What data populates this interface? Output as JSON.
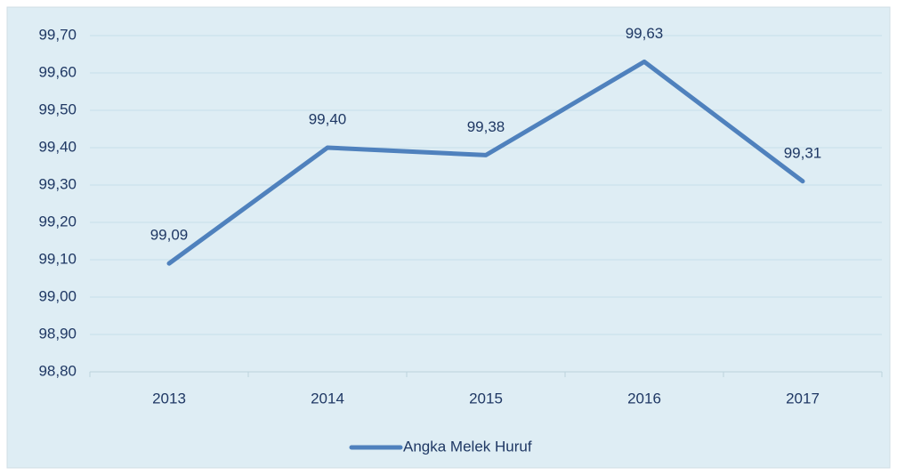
{
  "chart_data": {
    "type": "line",
    "categories": [
      "2013",
      "2014",
      "2015",
      "2016",
      "2017"
    ],
    "series": [
      {
        "name": "Angka Melek Huruf",
        "color": "#4f81bd",
        "values": [
          99.09,
          99.4,
          99.38,
          99.63,
          99.31
        ],
        "value_labels": [
          "99,09",
          "99,40",
          "99,38",
          "99,63",
          "99,31"
        ]
      }
    ],
    "ylim": [
      98.8,
      99.7
    ],
    "yticks": [
      {
        "value": 98.8,
        "label": "98,80"
      },
      {
        "value": 98.9,
        "label": "98,90"
      },
      {
        "value": 99.0,
        "label": "99,00"
      },
      {
        "value": 99.1,
        "label": "99,10"
      },
      {
        "value": 99.2,
        "label": "99,20"
      },
      {
        "value": 99.3,
        "label": "99,30"
      },
      {
        "value": 99.4,
        "label": "99,40"
      },
      {
        "value": 99.5,
        "label": "99,50"
      },
      {
        "value": 99.6,
        "label": "99,60"
      },
      {
        "value": 99.7,
        "label": "99,70"
      }
    ],
    "grid": true,
    "legend": "bottom"
  }
}
